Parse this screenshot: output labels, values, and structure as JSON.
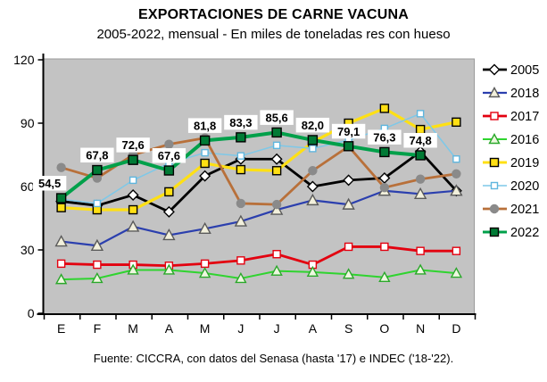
{
  "title": "EXPORTACIONES DE CARNE VACUNA",
  "subtitle": "2005-2022, mensual - En miles de toneladas res con hueso",
  "source": "Fuente: CICCRA, con datos del Senasa (hasta '17) e INDEC ('18-'22).",
  "colors": {
    "plot_background": "#c3c3c3",
    "axis": "#000000",
    "label_box": "#ffffff"
  },
  "chart_data": {
    "type": "line",
    "categories": [
      "E",
      "F",
      "M",
      "A",
      "M",
      "J",
      "J",
      "A",
      "S",
      "O",
      "N",
      "D"
    ],
    "ylim": [
      0,
      120
    ],
    "yticks": [
      0,
      30,
      60,
      90,
      120
    ],
    "grid": false,
    "legend_position": "right",
    "plot_background": "#c3c3c3",
    "series": [
      {
        "name": "2005",
        "color": "#000000",
        "width": 2.8,
        "marker": "diamond",
        "marker_size": 4.5,
        "marker_fill": "#ffffff",
        "marker_edge": "#000000",
        "values": [
          53,
          51,
          56,
          48,
          65,
          73,
          73,
          60,
          63,
          64,
          76.5,
          58
        ]
      },
      {
        "name": "2018",
        "color": "#2b3fae",
        "width": 2.2,
        "marker": "triangle",
        "marker_size": 5,
        "marker_fill": "#f2f0dc",
        "marker_edge": "#5a5a5a",
        "values": [
          34,
          32,
          41,
          37,
          40,
          43.5,
          49,
          53.5,
          51.5,
          58,
          56.5,
          58
        ]
      },
      {
        "name": "2017",
        "color": "#e3000f",
        "width": 2.8,
        "marker": "square",
        "marker_size": 4,
        "marker_fill": "#ffffff",
        "marker_edge": "#e3000f",
        "values": [
          23.5,
          23,
          23,
          22.5,
          23.5,
          25,
          28,
          23,
          31.5,
          31.5,
          29.5,
          29.5
        ]
      },
      {
        "name": "2016",
        "color": "#2fd42f",
        "width": 2,
        "marker": "triangle",
        "marker_size": 4.5,
        "marker_fill": "#eef7e0",
        "marker_edge": "#2aa82a",
        "values": [
          16,
          16.5,
          20.5,
          20.5,
          19,
          16.5,
          20,
          19.5,
          18.5,
          17,
          20.5,
          19
        ]
      },
      {
        "name": "2019",
        "color": "#ffe014",
        "width": 3.2,
        "marker": "square",
        "marker_size": 4.5,
        "marker_fill": "#ffe014",
        "marker_edge": "#000000",
        "values": [
          50,
          49,
          49,
          57.5,
          71,
          68,
          67.5,
          81,
          90,
          97,
          87,
          90.5
        ]
      },
      {
        "name": "2020",
        "color": "#7ec8e8",
        "width": 1.5,
        "marker": "square",
        "marker_size": 3.5,
        "marker_fill": "#ffffff",
        "marker_edge": "#5fb6de",
        "values": [
          54,
          52,
          63,
          71,
          76,
          74.5,
          79.5,
          78,
          82,
          87.5,
          94.5,
          73
        ]
      },
      {
        "name": "2021",
        "color": "#b8703a",
        "width": 2.8,
        "marker": "circle",
        "marker_size": 4.5,
        "marker_fill": "#8a8a8a",
        "marker_edge": "#8a8a8a",
        "values": [
          69,
          64,
          75,
          80,
          83,
          52,
          51.5,
          67.5,
          79,
          59.5,
          63.5,
          66
        ]
      },
      {
        "name": "2022",
        "color": "#00a04a",
        "width": 4,
        "marker": "square",
        "marker_size": 5,
        "marker_fill": "#007a35",
        "marker_edge": "#000000",
        "values": [
          54.5,
          67.8,
          72.6,
          67.6,
          81.8,
          83.3,
          85.6,
          82.0,
          79.1,
          76.3,
          74.8,
          null
        ],
        "point_labels": [
          "54,5",
          "67,8",
          "72,6",
          "67,6",
          "81,8",
          "83,3",
          "85,6",
          "82,0",
          "79,1",
          "76,3",
          "74,8"
        ]
      }
    ]
  }
}
